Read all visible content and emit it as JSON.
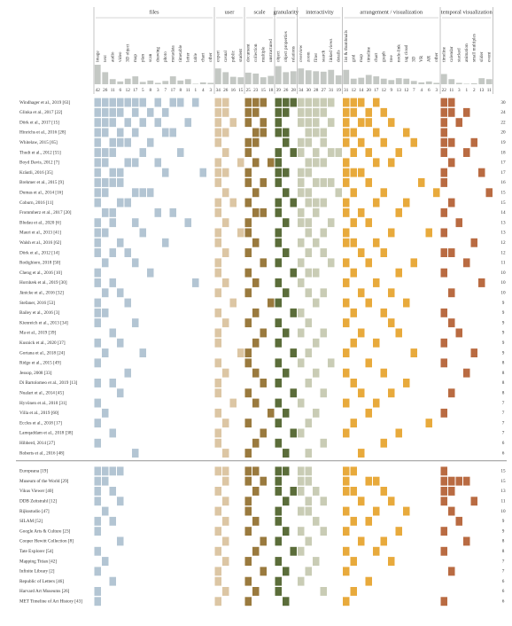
{
  "header": {
    "groups": [
      {
        "label": "files",
        "color": "#b3c5d3",
        "columns": [
          "image",
          "text",
          "audio",
          "video",
          "3D object",
          "map",
          "plan",
          "scan",
          "drawing",
          "photo",
          "metadata",
          "timetable",
          "letter",
          "table",
          "chart",
          "other"
        ],
        "counts": [
          42,
          26,
          11,
          6,
          12,
          17,
          5,
          8,
          3,
          7,
          17,
          8,
          11,
          1,
          4,
          3
        ]
      },
      {
        "label": "user",
        "color": "#dcc6a4",
        "columns": [
          "expert",
          "casual",
          "public",
          "student"
        ],
        "counts": [
          34,
          26,
          16,
          15
        ]
      },
      {
        "label": "scale",
        "color": "#9a7a3e",
        "columns": [
          "document",
          "collection",
          "multiple",
          "unstructured"
        ],
        "counts": [
          25,
          23,
          15,
          18
        ]
      },
      {
        "label": "granularity",
        "color": "#5b6d3a",
        "columns": [
          "object",
          "object properties",
          "relations"
        ],
        "counts": [
          39,
          26,
          28
        ]
      },
      {
        "label": "interactivity",
        "color": "#c9ccb5",
        "columns": [
          "overview",
          "zoom",
          "filter",
          "search",
          "linked views",
          "details"
        ],
        "counts": [
          34,
          30,
          28,
          27,
          31,
          19
        ]
      },
      {
        "label": "arrangement / visualization",
        "color": "#e8aa3c",
        "columns": [
          "list & thumbnails",
          "grid",
          "map",
          "timeline",
          "chart",
          "graph",
          "tree",
          "node-link",
          "tag cloud",
          "3D",
          "VR",
          "AR",
          "other"
        ],
        "counts": [
          31,
          12,
          14,
          20,
          17,
          12,
          9,
          13,
          12,
          7,
          4,
          6,
          3
        ]
      },
      {
        "label": "temporal visualization",
        "color": "#b96b42",
        "columns": [
          "timeline",
          "calendar",
          "stacked",
          "animation",
          "small multiples",
          "slider",
          "event"
        ],
        "counts": [
          22,
          11,
          3,
          1,
          2,
          13,
          11
        ]
      }
    ]
  },
  "sections": [
    {
      "rows": [
        {
          "label": "Windhager et al., 2019 [63]",
          "total": "30",
          "cells": [
            0,
            1,
            2,
            3,
            4,
            5,
            6,
            8,
            10,
            11,
            13,
            16,
            17,
            20,
            21,
            22,
            24,
            25,
            26,
            27,
            28,
            29,
            30,
            31,
            33,
            34,
            35,
            37,
            46,
            47
          ]
        },
        {
          "label": "Glinka et al., 2017 [22]",
          "total": "24",
          "cells": [
            0,
            1,
            2,
            3,
            5,
            7,
            9,
            16,
            17,
            20,
            21,
            24,
            25,
            27,
            28,
            29,
            30,
            33,
            34,
            36,
            38,
            46,
            47,
            49
          ]
        },
        {
          "label": "Dörk et al., 2017 [15]",
          "total": "22",
          "cells": [
            0,
            1,
            2,
            4,
            6,
            8,
            12,
            16,
            18,
            20,
            22,
            24,
            27,
            28,
            29,
            31,
            33,
            35,
            36,
            39,
            46,
            48
          ]
        },
        {
          "label": "Hinrichs et al., 2016 [28]",
          "total": "20",
          "cells": [
            0,
            1,
            3,
            5,
            9,
            10,
            16,
            17,
            21,
            22,
            24,
            25,
            28,
            29,
            30,
            33,
            34,
            37,
            41,
            46
          ]
        },
        {
          "label": "Whitelaw, 2015 [65]",
          "total": "19",
          "cells": [
            0,
            2,
            3,
            4,
            7,
            16,
            20,
            21,
            25,
            27,
            28,
            30,
            33,
            35,
            38,
            42,
            46,
            47,
            50
          ]
        },
        {
          "label": "Thudt et al., 2012 [55]",
          "total": "18",
          "cells": [
            0,
            1,
            2,
            6,
            11,
            17,
            20,
            24,
            26,
            27,
            29,
            31,
            32,
            34,
            36,
            40,
            46,
            49
          ]
        },
        {
          "label": "Boyd Davis, 2012 [7]",
          "total": "17",
          "cells": [
            0,
            1,
            4,
            5,
            8,
            16,
            19,
            21,
            23,
            24,
            28,
            29,
            30,
            33,
            37,
            39,
            47
          ]
        },
        {
          "label": "Kräutli, 2016 [35]",
          "total": "17",
          "cells": [
            0,
            2,
            3,
            9,
            14,
            16,
            17,
            20,
            24,
            25,
            27,
            28,
            33,
            34,
            35,
            46,
            51
          ]
        },
        {
          "label": "Brehmer et al., 2015 [9]",
          "total": "16",
          "cells": [
            0,
            1,
            2,
            3,
            16,
            20,
            22,
            24,
            27,
            29,
            30,
            31,
            33,
            36,
            43,
            46
          ]
        },
        {
          "label": "Dumas et al., 2014 [16]",
          "total": "15",
          "cells": [
            0,
            1,
            5,
            6,
            7,
            17,
            21,
            25,
            27,
            28,
            32,
            34,
            38,
            45,
            52
          ]
        },
        {
          "label": "Coburn, 2016 [11]",
          "total": "15",
          "cells": [
            0,
            3,
            4,
            16,
            18,
            20,
            24,
            26,
            28,
            29,
            30,
            33,
            37,
            41,
            47
          ]
        },
        {
          "label": "Frommherz et al., 2017 [20]",
          "total": "14",
          "cells": [
            1,
            2,
            8,
            10,
            16,
            21,
            22,
            24,
            27,
            29,
            33,
            35,
            40,
            46
          ]
        },
        {
          "label": "Bludau et al., 2020 [6]",
          "total": "13",
          "cells": [
            0,
            2,
            5,
            12,
            17,
            20,
            25,
            27,
            28,
            31,
            34,
            36,
            48
          ]
        },
        {
          "label": "Mauri et al., 2013 [41]",
          "total": "13",
          "cells": [
            0,
            1,
            6,
            16,
            19,
            20,
            24,
            28,
            30,
            33,
            39,
            44,
            46
          ]
        },
        {
          "label": "Walsh et al., 2016 [62]",
          "total": "12",
          "cells": [
            0,
            3,
            9,
            16,
            21,
            24,
            27,
            29,
            33,
            34,
            37,
            50
          ]
        },
        {
          "label": "Dörk et al., 2012 [14]",
          "total": "12",
          "cells": [
            0,
            2,
            4,
            17,
            20,
            25,
            28,
            30,
            35,
            38,
            46,
            47
          ]
        },
        {
          "label": "Rodighiero, 2018 [50]",
          "total": "11",
          "cells": [
            1,
            5,
            16,
            22,
            24,
            27,
            31,
            33,
            36,
            42,
            49
          ]
        },
        {
          "label": "Cheng et al., 2016 [10]",
          "total": "10",
          "cells": [
            0,
            7,
            16,
            20,
            26,
            28,
            29,
            34,
            40,
            46
          ]
        },
        {
          "label": "Hornbæk et al., 2019 [30]",
          "total": "10",
          "cells": [
            0,
            2,
            13,
            17,
            21,
            24,
            27,
            33,
            37,
            51
          ]
        },
        {
          "label": "Jänicke et al., 2016 [32]",
          "total": "10",
          "cells": [
            1,
            3,
            16,
            20,
            25,
            28,
            30,
            35,
            39,
            47
          ]
        },
        {
          "label": "Stefaner, 2016 [53]",
          "total": "9",
          "cells": [
            0,
            4,
            18,
            23,
            24,
            29,
            33,
            36,
            41
          ]
        },
        {
          "label": "Bailey et al., 2016 [3]",
          "total": "9",
          "cells": [
            0,
            1,
            16,
            21,
            26,
            27,
            34,
            38,
            46
          ]
        },
        {
          "label": "Kienreich et al., 2013 [34]",
          "total": "9",
          "cells": [
            0,
            5,
            17,
            20,
            24,
            28,
            33,
            39,
            47
          ]
        },
        {
          "label": "Ma et al., 2019 [39]",
          "total": "9",
          "cells": [
            2,
            16,
            22,
            25,
            27,
            30,
            35,
            40,
            48
          ]
        },
        {
          "label": "Kusnick et al., 2020 [37]",
          "total": "9",
          "cells": [
            0,
            3,
            16,
            21,
            24,
            29,
            34,
            37,
            46
          ]
        },
        {
          "label": "Gortana et al., 2018 [24]",
          "total": "9",
          "cells": [
            1,
            6,
            19,
            20,
            26,
            28,
            33,
            42,
            50
          ]
        },
        {
          "label": "Ridge et al., 2015 [49]",
          "total": "8",
          "cells": [
            0,
            16,
            20,
            24,
            27,
            31,
            36,
            46
          ]
        },
        {
          "label": "Jessop, 2008 [33]",
          "total": "8",
          "cells": [
            4,
            17,
            21,
            25,
            29,
            33,
            38,
            49
          ]
        },
        {
          "label": "Di Bartolomeo et al., 2019 [13]",
          "total": "8",
          "cells": [
            0,
            2,
            16,
            22,
            24,
            28,
            34,
            41
          ]
        },
        {
          "label": "Nualart et al., 2014 [45]",
          "total": "8",
          "cells": [
            3,
            16,
            20,
            26,
            30,
            35,
            39,
            47
          ]
        },
        {
          "label": "Hyvönen et al., 2010 [31]",
          "total": "7",
          "cells": [
            0,
            18,
            21,
            24,
            27,
            33,
            37
          ]
        },
        {
          "label": "Villa et al., 2019 [60]",
          "total": "7",
          "cells": [
            1,
            16,
            23,
            25,
            29,
            36,
            46
          ]
        },
        {
          "label": "Eccles et al., 2018 [17]",
          "total": "7",
          "cells": [
            0,
            17,
            20,
            24,
            28,
            34,
            44
          ]
        },
        {
          "label": "Lamqaddam et al., 2018 [38]",
          "total": "7",
          "cells": [
            2,
            16,
            22,
            26,
            27,
            33,
            40
          ]
        },
        {
          "label": "Hibberd, 2014 [27]",
          "total": "6",
          "cells": [
            0,
            16,
            21,
            24,
            30,
            38
          ]
        },
        {
          "label": "Roberts et al., 2016 [48]",
          "total": "6",
          "cells": [
            5,
            17,
            20,
            25,
            28,
            35
          ]
        }
      ]
    },
    {
      "rows": [
        {
          "label": "Europeana [19]",
          "total": "15",
          "cells": [
            0,
            1,
            2,
            3,
            16,
            17,
            20,
            21,
            24,
            25,
            27,
            28,
            33,
            34,
            46
          ]
        },
        {
          "label": "Museum of the World [29]",
          "total": "15",
          "cells": [
            0,
            1,
            17,
            20,
            22,
            24,
            27,
            28,
            33,
            36,
            37,
            46,
            47,
            48,
            49
          ]
        },
        {
          "label": "Vikus Viewer [40]",
          "total": "13",
          "cells": [
            0,
            2,
            16,
            21,
            24,
            26,
            27,
            29,
            33,
            34,
            38,
            46,
            47
          ]
        },
        {
          "label": "DDB Zeitstrahl [12]",
          "total": "11",
          "cells": [
            0,
            3,
            17,
            20,
            25,
            28,
            30,
            35,
            39,
            46,
            50
          ]
        },
        {
          "label": "Rijksstudio [47]",
          "total": "10",
          "cells": [
            1,
            16,
            20,
            24,
            27,
            28,
            33,
            37,
            41,
            47
          ]
        },
        {
          "label": "SILAM [52]",
          "total": "9",
          "cells": [
            0,
            2,
            17,
            21,
            24,
            29,
            34,
            36,
            48
          ]
        },
        {
          "label": "Google Arts & Culture [23]",
          "total": "9",
          "cells": [
            0,
            16,
            20,
            25,
            27,
            30,
            33,
            40,
            46
          ]
        },
        {
          "label": "Cooper Hewitt Collection [8]",
          "total": "8",
          "cells": [
            3,
            17,
            22,
            24,
            28,
            35,
            38,
            49
          ]
        },
        {
          "label": "Tate Explorer [54]",
          "total": "8",
          "cells": [
            0,
            16,
            21,
            26,
            27,
            33,
            37,
            46
          ]
        },
        {
          "label": "Mapping Titian [42]",
          "total": "7",
          "cells": [
            1,
            17,
            20,
            24,
            29,
            34,
            39
          ]
        },
        {
          "label": "Infinite Library [2]",
          "total": "7",
          "cells": [
            0,
            16,
            22,
            25,
            28,
            33,
            47
          ]
        },
        {
          "label": "Republic of Letters [46]",
          "total": "6",
          "cells": [
            2,
            16,
            20,
            24,
            27,
            36
          ]
        },
        {
          "label": "Harvard Art Museums [26]",
          "total": "6",
          "cells": [
            0,
            17,
            21,
            24,
            30,
            34
          ]
        },
        {
          "label": "MET Timeline of Art History [43]",
          "total": "6",
          "cells": [
            0,
            16,
            20,
            25,
            33,
            46
          ]
        }
      ]
    }
  ]
}
